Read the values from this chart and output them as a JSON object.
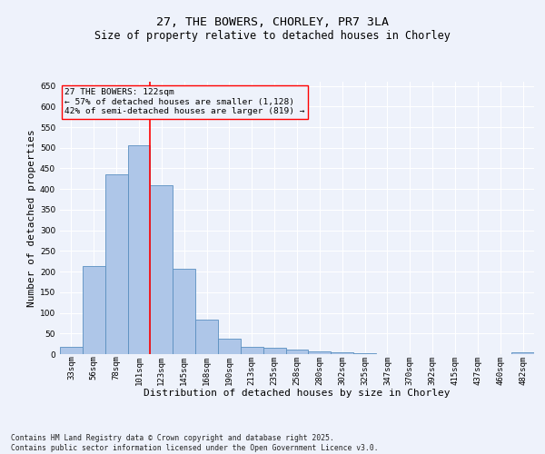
{
  "title": "27, THE BOWERS, CHORLEY, PR7 3LA",
  "subtitle": "Size of property relative to detached houses in Chorley",
  "xlabel": "Distribution of detached houses by size in Chorley",
  "ylabel": "Number of detached properties",
  "footnote": "Contains HM Land Registry data © Crown copyright and database right 2025.\nContains public sector information licensed under the Open Government Licence v3.0.",
  "categories": [
    "33sqm",
    "56sqm",
    "78sqm",
    "101sqm",
    "123sqm",
    "145sqm",
    "168sqm",
    "190sqm",
    "213sqm",
    "235sqm",
    "258sqm",
    "280sqm",
    "302sqm",
    "325sqm",
    "347sqm",
    "370sqm",
    "392sqm",
    "415sqm",
    "437sqm",
    "460sqm",
    "482sqm"
  ],
  "values": [
    17,
    213,
    435,
    507,
    410,
    207,
    84,
    38,
    17,
    15,
    11,
    6,
    4,
    2,
    1,
    1,
    1,
    0,
    0,
    0,
    4
  ],
  "bar_color": "#aec6e8",
  "bar_edge_color": "#5a8fc0",
  "property_line_label": "27 THE BOWERS: 122sqm",
  "annotation_line1": "← 57% of detached houses are smaller (1,128)",
  "annotation_line2": "42% of semi-detached houses are larger (819) →",
  "annotation_box_color": "red",
  "vline_color": "red",
  "vline_x": 3.5,
  "ylim": [
    0,
    660
  ],
  "yticks": [
    0,
    50,
    100,
    150,
    200,
    250,
    300,
    350,
    400,
    450,
    500,
    550,
    600,
    650
  ],
  "background_color": "#eef2fb",
  "grid_color": "#ffffff",
  "title_fontsize": 9.5,
  "subtitle_fontsize": 8.5,
  "axis_label_fontsize": 8,
  "tick_fontsize": 6.5,
  "annot_fontsize": 6.8,
  "footnote_fontsize": 5.8
}
